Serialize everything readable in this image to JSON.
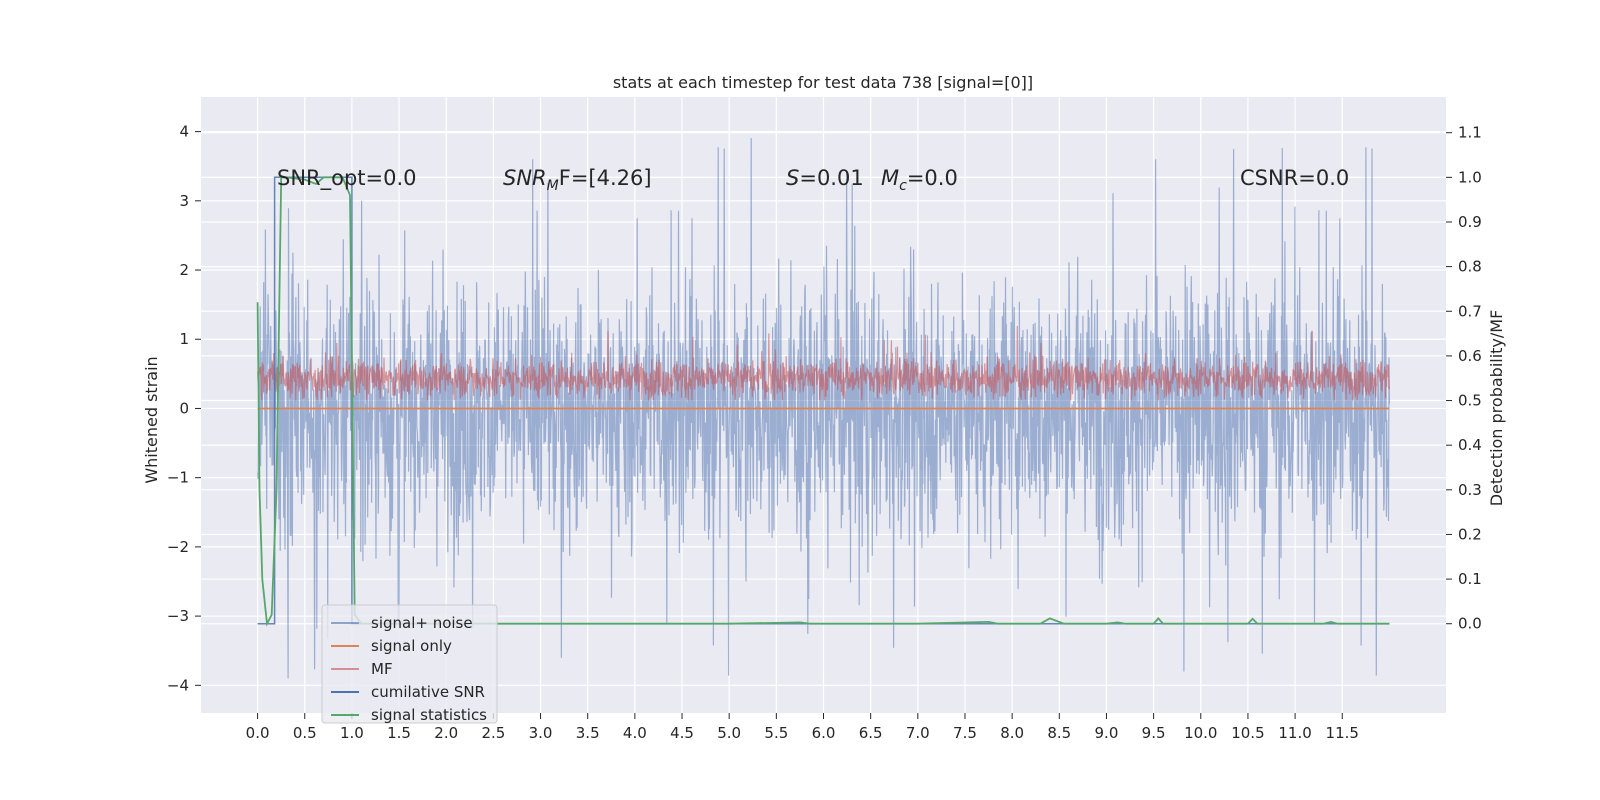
{
  "chart_data": {
    "type": "line",
    "title": "stats at each timestep for test data 738 [signal=[0]]",
    "ylabel_left": "Whitened strain",
    "ylabel_right": "Detection probability/MF",
    "x_ticks": [
      "0.0",
      "0.5",
      "1.0",
      "1.5",
      "2.0",
      "2.5",
      "3.0",
      "3.5",
      "4.0",
      "4.5",
      "5.0",
      "5.5",
      "6.0",
      "6.5",
      "7.0",
      "7.5",
      "8.0",
      "8.5",
      "9.0",
      "9.5",
      "10.0",
      "10.5",
      "11.0",
      "11.5"
    ],
    "y_left_ticks": [
      "4",
      "3",
      "2",
      "1",
      "0",
      "−1",
      "−2",
      "−3",
      "−4"
    ],
    "y_right_ticks": [
      "1.1",
      "1.0",
      "0.9",
      "0.8",
      "0.7",
      "0.6",
      "0.5",
      "0.4",
      "0.3",
      "0.2",
      "0.1",
      "0.0"
    ],
    "xlim": [
      -0.6,
      12.6
    ],
    "ylim_left": [
      -4.4,
      4.5
    ],
    "ylim_right": [
      -0.2,
      1.18
    ],
    "grid": true,
    "legend_position": "lower-left",
    "annotations": [
      {
        "text": "SNR_opt=0.0"
      },
      {
        "text": "SNR_M F=[4.26]",
        "parts": [
          "SNR",
          "M",
          "F=[4.26]"
        ]
      },
      {
        "text": "S=0.01",
        "parts": [
          "S",
          "=0.01"
        ]
      },
      {
        "text": "M_c=0.0",
        "parts": [
          "M",
          "c",
          "=0.0"
        ]
      },
      {
        "text": "CSNR=0.0"
      }
    ],
    "series": [
      {
        "name": "signal+ noise",
        "color": "#4c72b0",
        "axis": "left",
        "kind": "noise",
        "x_range": [
          0.0,
          12.0
        ],
        "center": 0.0,
        "range_typical": [
          -2.0,
          2.0
        ],
        "peaks_max": 4.1,
        "peaks_min": -3.9
      },
      {
        "name": "signal only",
        "color": "#dd8452",
        "axis": "left",
        "x": [
          0.0,
          12.0
        ],
        "values": [
          0.0,
          0.0
        ]
      },
      {
        "name": "MF",
        "color": "#c44e52",
        "axis": "right",
        "kind": "noise",
        "x_range": [
          0.0,
          12.0
        ],
        "center": 0.55,
        "range_typical": [
          0.5,
          0.6
        ]
      },
      {
        "name": "cumilative SNR",
        "color": "#4c72b0",
        "axis": "right",
        "x": [
          0.0,
          0.18,
          0.18,
          1.0,
          1.0,
          12.0
        ],
        "values": [
          0.0,
          0.0,
          1.0,
          1.0,
          0.0,
          0.0
        ]
      },
      {
        "name": "signal statistics",
        "color": "#55a868",
        "axis": "right",
        "x": [
          0.0,
          0.02,
          0.05,
          0.1,
          0.15,
          0.2,
          0.25,
          0.3,
          0.5,
          0.62,
          0.7,
          0.9,
          0.98,
          1.03,
          1.1,
          2.0,
          5.0,
          5.75,
          5.85,
          7.0,
          7.75,
          7.85,
          8.3,
          8.4,
          8.55,
          9.0,
          9.12,
          9.2,
          9.5,
          9.55,
          9.6,
          10.5,
          10.55,
          10.6,
          11.3,
          11.38,
          11.45,
          12.0
        ],
        "values": [
          0.72,
          0.3,
          0.1,
          0.0,
          0.02,
          0.3,
          1.0,
          1.0,
          0.995,
          0.985,
          1.0,
          1.0,
          0.96,
          0.02,
          0.0,
          0.0,
          0.0,
          0.003,
          0.0,
          0.0,
          0.004,
          0.0,
          0.0,
          0.012,
          0.0,
          0.0,
          0.003,
          0.0,
          0.0,
          0.012,
          0.0,
          0.0,
          0.011,
          0.0,
          0.0,
          0.004,
          0.0,
          0.0
        ]
      }
    ]
  }
}
